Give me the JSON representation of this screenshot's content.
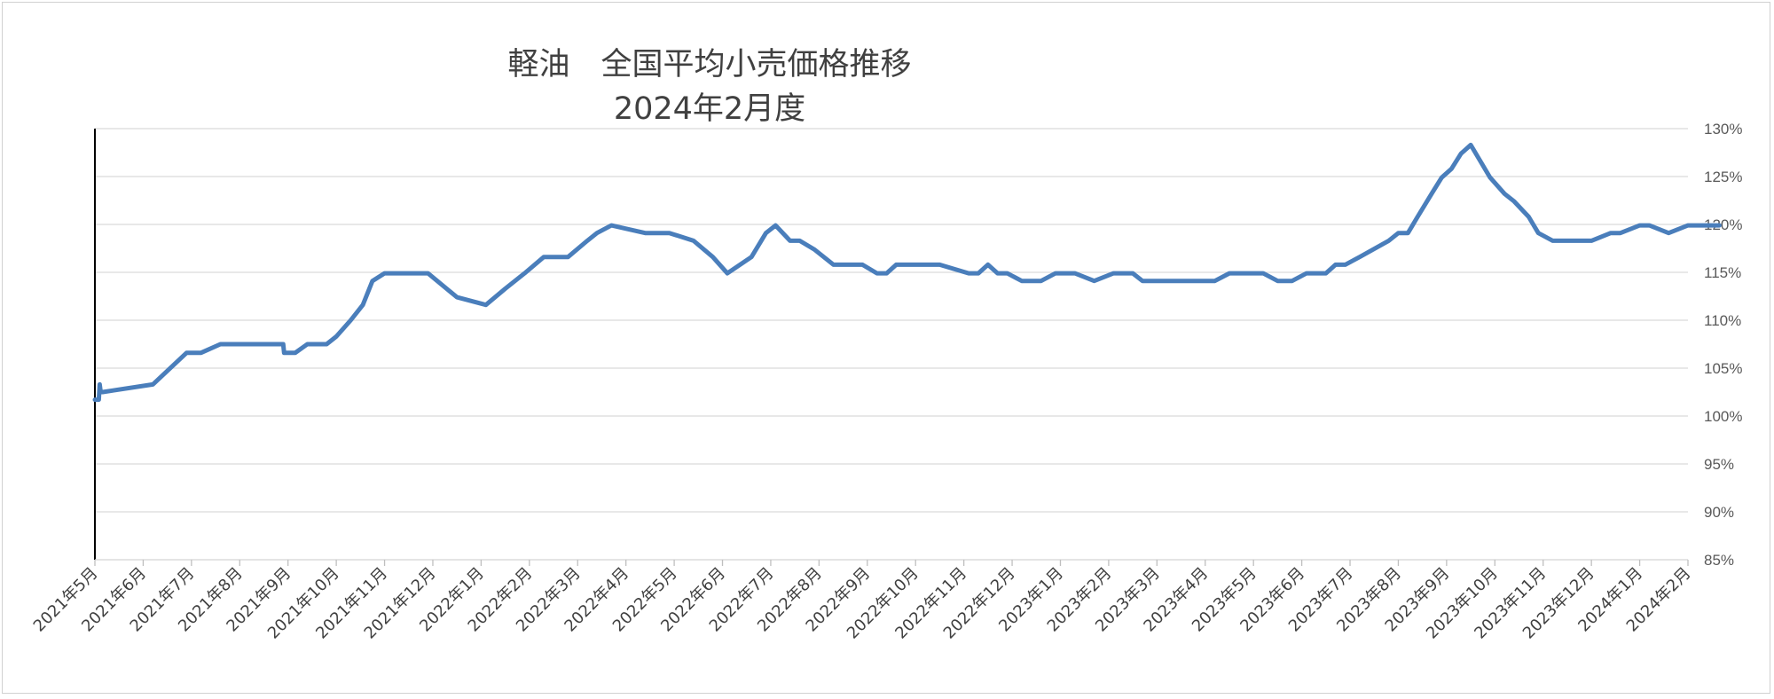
{
  "chart_data": {
    "type": "line",
    "title": "軽油　全国平均小売価格推移",
    "subtitle": "2024年2月度",
    "xlabel": "",
    "ylabel": "",
    "y_axis_side": "right",
    "ylim": [
      0.85,
      1.3
    ],
    "y_tick_values": [
      0.85,
      0.9,
      0.95,
      1.0,
      1.05,
      1.1,
      1.15,
      1.2,
      1.25,
      1.3
    ],
    "y_tick_labels": [
      "85%",
      "90%",
      "95%",
      "100%",
      "105%",
      "110%",
      "115%",
      "120%",
      "125%",
      "130%"
    ],
    "grid": true,
    "legend": "none",
    "categories": [
      "2021年5月",
      "2021年6月",
      "2021年7月",
      "2021年8月",
      "2021年9月",
      "2021年10月",
      "2021年11月",
      "2021年12月",
      "2022年1月",
      "2022年2月",
      "2022年3月",
      "2022年4月",
      "2022年5月",
      "2022年6月",
      "2022年7月",
      "2022年8月",
      "2022年9月",
      "2022年10月",
      "2022年11月",
      "2022年12月",
      "2023年1月",
      "2023年2月",
      "2023年3月",
      "2023年4月",
      "2023年5月",
      "2023年6月",
      "2023年7月",
      "2023年8月",
      "2023年9月",
      "2023年10月",
      "2023年11月",
      "2023年12月",
      "2024年1月",
      "2024年2月"
    ],
    "x_unit": "months since 2021年5月",
    "series": [
      {
        "color": "#4a7ebb",
        "x": [
          0,
          0.08,
          0.1,
          0.12,
          0.16,
          1.2,
          1.9,
          2.2,
          2.6,
          3.0,
          3.9,
          3.92,
          4.15,
          4.4,
          4.8,
          5.0,
          5.3,
          5.55,
          5.75,
          6.0,
          6.9,
          7.5,
          8.1,
          8.5,
          8.9,
          9.3,
          9.8,
          10.2,
          10.4,
          10.7,
          11.4,
          11.6,
          11.9,
          12.4,
          12.8,
          13.1,
          13.6,
          13.9,
          14.1,
          14.4,
          14.6,
          14.9,
          15.3,
          15.9,
          16.2,
          16.4,
          16.6,
          17.5,
          18.1,
          18.3,
          18.5,
          18.7,
          18.9,
          19.2,
          19.6,
          19.9,
          20.3,
          20.7,
          21.1,
          21.5,
          21.7,
          22.1,
          22.5,
          23.2,
          23.5,
          24.2,
          24.5,
          24.8,
          25.1,
          25.5,
          25.7,
          25.9,
          26.2,
          26.8,
          27.0,
          27.2,
          27.4,
          27.7,
          27.9,
          28.1,
          28.3,
          28.5,
          28.9,
          29.2,
          29.4,
          29.7,
          29.9,
          30.2,
          30.5,
          31.0,
          31.4,
          31.6,
          32.0,
          32.2,
          32.6,
          33.0,
          33.3,
          33.65
        ],
        "values": [
          1.017,
          1.017,
          1.033,
          1.025,
          1.025,
          1.033,
          1.066,
          1.066,
          1.075,
          1.075,
          1.075,
          1.066,
          1.066,
          1.075,
          1.075,
          1.083,
          1.1,
          1.116,
          1.141,
          1.149,
          1.149,
          1.124,
          1.116,
          1.133,
          1.149,
          1.166,
          1.166,
          1.183,
          1.191,
          1.199,
          1.191,
          1.191,
          1.191,
          1.183,
          1.166,
          1.149,
          1.166,
          1.191,
          1.199,
          1.183,
          1.183,
          1.174,
          1.158,
          1.158,
          1.149,
          1.149,
          1.158,
          1.158,
          1.149,
          1.149,
          1.158,
          1.149,
          1.149,
          1.141,
          1.141,
          1.149,
          1.149,
          1.141,
          1.149,
          1.149,
          1.141,
          1.141,
          1.141,
          1.141,
          1.149,
          1.149,
          1.141,
          1.141,
          1.149,
          1.149,
          1.158,
          1.158,
          1.166,
          1.183,
          1.191,
          1.191,
          1.208,
          1.233,
          1.249,
          1.258,
          1.274,
          1.283,
          1.249,
          1.232,
          1.224,
          1.208,
          1.191,
          1.183,
          1.183,
          1.183,
          1.191,
          1.191,
          1.199,
          1.199,
          1.191,
          1.199,
          1.199,
          1.199
        ]
      }
    ]
  }
}
